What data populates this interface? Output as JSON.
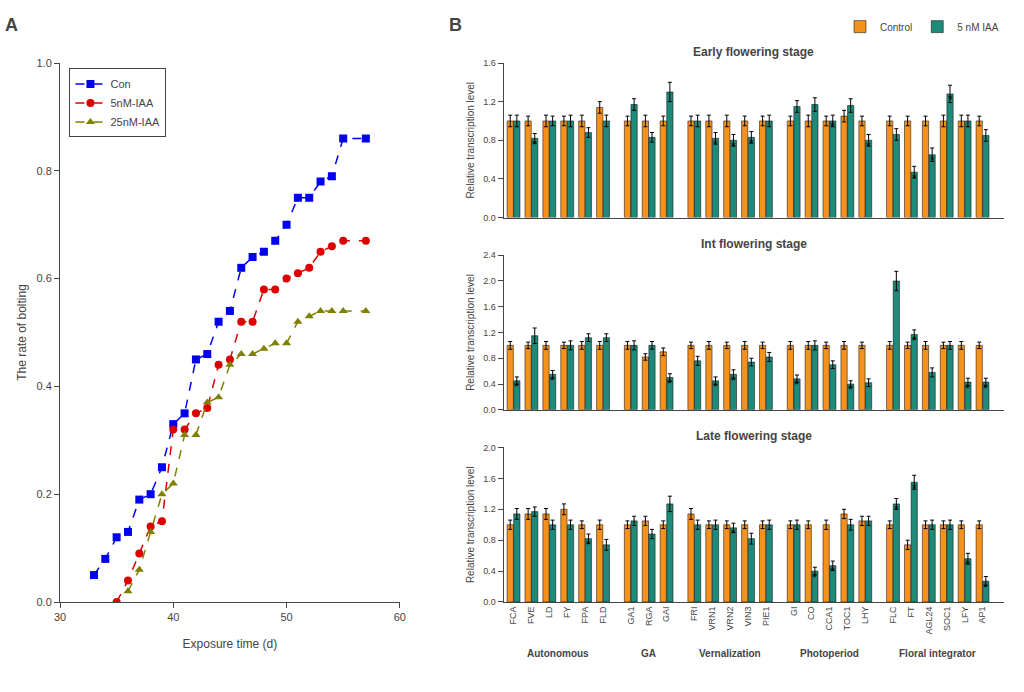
{
  "chart_data": [
    {
      "type": "line",
      "annotations": [
        "A"
      ],
      "xlabel": "Exposure time (d)",
      "ylabel": "The rate of bolting",
      "series": [
        {
          "name": "Con",
          "color": "#0000ee",
          "marker": "square",
          "line_style": "dashed",
          "x": [
            33,
            34,
            35,
            36,
            37,
            38,
            39,
            40,
            41,
            42,
            43,
            44,
            45,
            46,
            47,
            48,
            49,
            50,
            51,
            52,
            53,
            54,
            55,
            57
          ],
          "values": [
            0.05,
            0.08,
            0.12,
            0.13,
            0.19,
            0.2,
            0.25,
            0.33,
            0.35,
            0.45,
            0.46,
            0.52,
            0.54,
            0.62,
            0.64,
            0.65,
            0.67,
            0.7,
            0.75,
            0.75,
            0.78,
            0.79,
            0.86,
            0.86
          ]
        },
        {
          "name": "5nM-IAA",
          "color": "#dd0000",
          "marker": "circle",
          "line_style": "dashed",
          "x": [
            35,
            36,
            37,
            38,
            39,
            40,
            41,
            42,
            43,
            44,
            45,
            46,
            47,
            48,
            49,
            50,
            51,
            52,
            53,
            54,
            55,
            57
          ],
          "values": [
            0.0,
            0.04,
            0.09,
            0.14,
            0.15,
            0.32,
            0.32,
            0.35,
            0.36,
            0.44,
            0.45,
            0.52,
            0.52,
            0.58,
            0.58,
            0.6,
            0.61,
            0.62,
            0.65,
            0.66,
            0.67,
            0.67
          ]
        },
        {
          "name": "25nM-IAA",
          "color": "#808000",
          "marker": "triangle-up",
          "line_style": "dashed",
          "x": [
            36,
            37,
            38,
            39,
            40,
            41,
            42,
            43,
            44,
            45,
            46,
            47,
            48,
            49,
            50,
            51,
            52,
            53,
            54,
            55,
            57
          ],
          "values": [
            0.02,
            0.06,
            0.13,
            0.2,
            0.22,
            0.31,
            0.31,
            0.37,
            0.38,
            0.44,
            0.46,
            0.46,
            0.47,
            0.48,
            0.48,
            0.52,
            0.53,
            0.54,
            0.54,
            0.54,
            0.54
          ]
        }
      ],
      "xlim": [
        30,
        60
      ],
      "xticks": [
        30,
        40,
        50,
        60
      ],
      "ylim": [
        0,
        1
      ],
      "yticks": [
        {
          "value": 0,
          "label": "0.0"
        },
        0.2,
        0.4,
        0.6,
        0.8,
        {
          "value": 1,
          "label": "1.0"
        }
      ],
      "grid": false,
      "legend": "upper left"
    },
    {
      "type": "bar",
      "annotations": [
        "B"
      ],
      "title": "Early flowering stage",
      "ylabel": "Relative transcription level",
      "categories": [
        "FCA",
        "FVE",
        "LD",
        "FY",
        "FPA",
        "FLD",
        "GA1",
        "RGA",
        "GAI",
        "FRI",
        "VRN1",
        "VRN2",
        "VIN3",
        "PIE1",
        "GI",
        "CO",
        "CCA1",
        "TOC1",
        "LHY",
        "FLC",
        "FT",
        "AGL24",
        "SOC1",
        "LFY",
        "AP1"
      ],
      "series": [
        {
          "name": "Control",
          "color": "#f5921e",
          "values": [
            1.0,
            1.0,
            1.0,
            1.0,
            1.0,
            1.14,
            1.0,
            1.0,
            1.0,
            1.0,
            1.0,
            1.0,
            1.0,
            1.0,
            1.0,
            1.0,
            1.0,
            1.05,
            1.0,
            1.0,
            1.0,
            1.0,
            1.0,
            1.0,
            1.0
          ],
          "errors": [
            0.06,
            0.05,
            0.06,
            0.05,
            0.06,
            0.06,
            0.05,
            0.06,
            0.05,
            0.05,
            0.06,
            0.06,
            0.05,
            0.05,
            0.05,
            0.06,
            0.05,
            0.06,
            0.05,
            0.05,
            0.05,
            0.05,
            0.06,
            0.06,
            0.05
          ],
          "significant": [
            false,
            false,
            false,
            false,
            false,
            false,
            false,
            false,
            false,
            false,
            false,
            false,
            false,
            false,
            false,
            false,
            false,
            false,
            false,
            false,
            false,
            false,
            false,
            false,
            false
          ]
        },
        {
          "name": "5 nM IAA",
          "color": "#1e8a7a",
          "values": [
            1.0,
            0.82,
            1.0,
            1.0,
            0.88,
            1.0,
            1.17,
            0.83,
            1.3,
            1.0,
            0.82,
            0.8,
            0.83,
            1.0,
            1.15,
            1.17,
            1.0,
            1.16,
            0.8,
            0.86,
            0.47,
            0.65,
            1.28,
            1.0,
            0.85
          ],
          "errors": [
            0.06,
            0.05,
            0.05,
            0.06,
            0.05,
            0.06,
            0.06,
            0.05,
            0.1,
            0.06,
            0.06,
            0.06,
            0.06,
            0.06,
            0.06,
            0.07,
            0.06,
            0.07,
            0.06,
            0.06,
            0.06,
            0.07,
            0.09,
            0.06,
            0.06
          ],
          "significant": [
            false,
            true,
            false,
            false,
            false,
            false,
            false,
            false,
            false,
            false,
            true,
            true,
            true,
            false,
            false,
            false,
            true,
            false,
            true,
            false,
            true,
            true,
            true,
            false,
            false
          ]
        }
      ],
      "significance_mark": "*",
      "ylim": [
        0,
        1.6
      ],
      "yticks": [
        {
          "value": 0,
          "label": "0.0"
        },
        0.4,
        0.8,
        1.2,
        1.6
      ],
      "grid": false,
      "legend": "upper right",
      "tick_labels": "y"
    },
    {
      "type": "bar",
      "title": "Int flowering stage",
      "ylabel": "Relative transcription level",
      "categories": [
        "FCA",
        "FVE",
        "LD",
        "FY",
        "FPA",
        "FLD",
        "GA1",
        "RGA",
        "GAI",
        "FRI",
        "VRN1",
        "VRN2",
        "VIN3",
        "PIE1",
        "GI",
        "CO",
        "CCA1",
        "TOC1",
        "LHY",
        "FLC",
        "FT",
        "AGL24",
        "SOC1",
        "LFY",
        "AP1"
      ],
      "series": [
        {
          "color": "#f5921e",
          "values": [
            1.0,
            1.0,
            1.0,
            1.0,
            1.0,
            1.0,
            1.0,
            0.82,
            0.9,
            1.0,
            1.0,
            1.0,
            1.0,
            1.0,
            1.0,
            1.0,
            1.0,
            1.0,
            1.0,
            1.0,
            1.0,
            1.0,
            1.0,
            1.0,
            1.0
          ],
          "errors": [
            0.06,
            0.05,
            0.06,
            0.05,
            0.06,
            0.06,
            0.06,
            0.05,
            0.06,
            0.05,
            0.06,
            0.05,
            0.06,
            0.05,
            0.06,
            0.06,
            0.05,
            0.06,
            0.05,
            0.06,
            0.05,
            0.06,
            0.05,
            0.06,
            0.05
          ],
          "significant": [
            false,
            false,
            false,
            false,
            false,
            false,
            false,
            false,
            false,
            false,
            false,
            false,
            false,
            false,
            false,
            false,
            false,
            false,
            false,
            false,
            false,
            false,
            false,
            false,
            false
          ]
        },
        {
          "color": "#1e8a7a",
          "values": [
            0.45,
            1.15,
            0.55,
            1.0,
            1.12,
            1.12,
            1.0,
            1.0,
            0.5,
            0.76,
            0.45,
            0.55,
            0.74,
            0.82,
            0.48,
            1.0,
            0.7,
            0.4,
            0.42,
            2.0,
            1.17,
            0.58,
            1.0,
            0.43,
            0.43
          ],
          "errors": [
            0.06,
            0.12,
            0.06,
            0.07,
            0.06,
            0.06,
            0.07,
            0.06,
            0.06,
            0.07,
            0.06,
            0.07,
            0.06,
            0.07,
            0.06,
            0.07,
            0.06,
            0.05,
            0.06,
            0.15,
            0.07,
            0.07,
            0.06,
            0.06,
            0.06
          ],
          "significant": [
            true,
            false,
            true,
            false,
            false,
            false,
            false,
            false,
            true,
            false,
            true,
            true,
            false,
            false,
            true,
            false,
            false,
            true,
            false,
            false,
            true,
            false,
            false,
            true,
            true
          ]
        }
      ],
      "significance_mark": "*",
      "ylim": [
        0,
        2.4
      ],
      "yticks": [
        {
          "value": 0,
          "label": "0.0"
        },
        0.4,
        0.8,
        1.2,
        1.6,
        {
          "value": 2,
          "label": "2.0"
        },
        2.4
      ],
      "grid": false,
      "tick_labels": "y"
    },
    {
      "type": "bar",
      "title": "Late flowering stage",
      "ylabel": "Relative transcription level",
      "categories": [
        "FCA",
        "FVE",
        "LD",
        "FY",
        "FPA",
        "FLD",
        "GA1",
        "RGA",
        "GAI",
        "FRI",
        "VRN1",
        "VRN2",
        "VIN3",
        "PIE1",
        "GI",
        "CO",
        "CCA1",
        "TOC1",
        "LHY",
        "FLC",
        "FT",
        "AGL24",
        "SOC1",
        "LFY",
        "AP1"
      ],
      "sections": [
        {
          "label": "Autonomous",
          "categories": [
            "FCA",
            "FVE",
            "LD",
            "FY",
            "FPA",
            "FLD"
          ]
        },
        {
          "label": "GA",
          "categories": [
            "GA1",
            "RGA",
            "GAI"
          ]
        },
        {
          "label": "Vernalization",
          "categories": [
            "FRI",
            "VRN1",
            "VRN2",
            "VIN3",
            "PIE1"
          ]
        },
        {
          "label": "Photoperiod",
          "categories": [
            "GI",
            "CO",
            "CCA1",
            "TOC1",
            "LHY"
          ]
        },
        {
          "label": "Floral integrator",
          "categories": [
            "FLC",
            "FT",
            "AGL24",
            "SOC1",
            "LFY",
            "AP1"
          ]
        }
      ],
      "series": [
        {
          "color": "#f5921e",
          "values": [
            1.0,
            1.14,
            1.14,
            1.2,
            1.0,
            1.0,
            1.0,
            1.05,
            1.0,
            1.14,
            1.0,
            1.0,
            1.0,
            1.0,
            1.0,
            1.0,
            1.0,
            1.14,
            1.05,
            1.0,
            0.74,
            1.0,
            1.0,
            1.0,
            1.0
          ],
          "errors": [
            0.06,
            0.07,
            0.07,
            0.07,
            0.05,
            0.06,
            0.05,
            0.06,
            0.05,
            0.07,
            0.05,
            0.05,
            0.05,
            0.05,
            0.05,
            0.05,
            0.06,
            0.06,
            0.06,
            0.05,
            0.06,
            0.05,
            0.05,
            0.05,
            0.05
          ],
          "significant": [
            false,
            false,
            false,
            false,
            false,
            false,
            false,
            false,
            false,
            false,
            false,
            false,
            false,
            false,
            false,
            false,
            false,
            false,
            false,
            false,
            false,
            false,
            false,
            false,
            false
          ]
        },
        {
          "color": "#1e8a7a",
          "values": [
            1.14,
            1.17,
            1.0,
            1.0,
            0.82,
            0.74,
            1.05,
            0.88,
            1.27,
            1.0,
            1.0,
            0.96,
            0.82,
            1.0,
            1.0,
            0.4,
            0.47,
            1.0,
            1.05,
            1.27,
            1.55,
            1.0,
            1.0,
            0.56,
            0.27
          ],
          "errors": [
            0.07,
            0.06,
            0.06,
            0.06,
            0.06,
            0.07,
            0.06,
            0.06,
            0.1,
            0.06,
            0.06,
            0.06,
            0.07,
            0.06,
            0.06,
            0.05,
            0.06,
            0.07,
            0.06,
            0.07,
            0.09,
            0.06,
            0.06,
            0.07,
            0.06
          ],
          "significant": [
            false,
            false,
            false,
            false,
            true,
            false,
            false,
            false,
            false,
            false,
            false,
            true,
            false,
            false,
            false,
            true,
            true,
            false,
            false,
            true,
            true,
            false,
            false,
            true,
            true
          ]
        }
      ],
      "significance_mark": "*",
      "ylim": [
        0,
        2.0
      ],
      "yticks": [
        {
          "value": 0,
          "label": "0.0"
        },
        0.4,
        0.8,
        1.2,
        1.6,
        {
          "value": 2,
          "label": "2.0"
        }
      ],
      "grid": false
    }
  ]
}
